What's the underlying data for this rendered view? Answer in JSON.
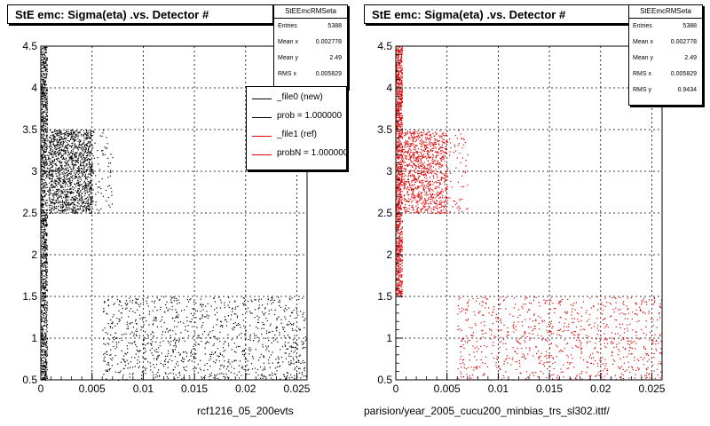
{
  "colors": {
    "new": "#000000",
    "ref": "#e00000"
  },
  "chart_data": [
    {
      "type": "scatter",
      "title": "StE emc: Sigma(eta) .vs. Detector #",
      "xlabel": "rcf1216_05_200evts",
      "xlim": [
        0,
        0.026
      ],
      "ylim": [
        0.5,
        4.5
      ],
      "xticks": [
        0,
        0.005,
        0.01,
        0.015,
        0.02,
        0.025
      ],
      "xtick_labels": [
        "0",
        "0.005",
        "0.01",
        "0.015",
        "0.02",
        "0.025"
      ],
      "yticks": [
        0.5,
        1,
        1.5,
        2,
        2.5,
        3,
        3.5,
        4,
        4.5
      ],
      "ytick_labels": [
        "0.5",
        "1",
        "1.5",
        "2",
        "2.5",
        "3",
        "3.5",
        "4",
        "4.5"
      ],
      "grid": true,
      "marker_color": "#000000",
      "stats": {
        "name": "StEEmcRMSeta",
        "rows": [
          {
            "label": "Entries",
            "value": "5388"
          },
          {
            "label": "Mean x",
            "value": "0.002778"
          },
          {
            "label": "Mean y",
            "value": "2.49"
          },
          {
            "label": "RMS x",
            "value": "0.005829"
          }
        ]
      },
      "legend": {
        "placement": "top-right",
        "entries": [
          {
            "label": "_file0 (new)",
            "color": "#000000"
          },
          {
            "label": "prob = 1.000000",
            "color": "#000000"
          },
          {
            "label": "_file1 (ref)",
            "color": "#e00000"
          },
          {
            "label": "probN = 1.000000",
            "color": "#e00000"
          }
        ]
      },
      "point_regions": [
        {
          "x": [
            0.0,
            0.0006
          ],
          "y": [
            0.5,
            4.5
          ],
          "count": 1100,
          "density": "very high"
        },
        {
          "x": [
            0.0007,
            0.005
          ],
          "y": [
            2.5,
            3.5
          ],
          "count": 1400,
          "density": "high"
        },
        {
          "x": [
            0.005,
            0.007
          ],
          "y": [
            2.5,
            3.5
          ],
          "count": 70,
          "density": "low"
        },
        {
          "x": [
            0.006,
            0.026
          ],
          "y": [
            0.5,
            1.5
          ],
          "count": 1100,
          "density": "low"
        }
      ]
    },
    {
      "type": "scatter",
      "title": "StE emc: Sigma(eta) .vs. Detector #",
      "xlabel": "parision/year_2005_cucu200_minbias_trs_sl302.ittf/",
      "xlim": [
        0,
        0.026
      ],
      "ylim": [
        0.5,
        4.5
      ],
      "xticks": [
        0,
        0.005,
        0.01,
        0.015,
        0.02,
        0.025
      ],
      "xtick_labels": [
        "0",
        "0.005",
        "0.01",
        "0.015",
        "0.02",
        "0.025"
      ],
      "yticks": [
        0.5,
        1,
        1.5,
        2,
        2.5,
        3,
        3.5,
        4,
        4.5
      ],
      "ytick_labels": [
        "0.5",
        "1",
        "1.5",
        "2",
        "2.5",
        "3",
        "3.5",
        "4",
        "4.5"
      ],
      "grid": true,
      "marker_color": "#e00000",
      "stats": {
        "name": "StEEmcRMSeta",
        "rows": [
          {
            "label": "Entries",
            "value": "5388"
          },
          {
            "label": "Mean x",
            "value": "0.002778"
          },
          {
            "label": "Mean y",
            "value": "2.49"
          },
          {
            "label": "RMS x",
            "value": "0.005829"
          },
          {
            "label": "RMS y",
            "value": "0.9434"
          }
        ]
      },
      "point_regions": [
        {
          "x": [
            0.0,
            0.0006
          ],
          "y": [
            1.5,
            4.5
          ],
          "count": 1100,
          "density": "very high"
        },
        {
          "x": [
            0.0007,
            0.005
          ],
          "y": [
            2.5,
            3.5
          ],
          "count": 1000,
          "density": "high"
        },
        {
          "x": [
            0.005,
            0.007
          ],
          "y": [
            2.5,
            3.5
          ],
          "count": 60,
          "density": "low"
        },
        {
          "x": [
            0.006,
            0.026
          ],
          "y": [
            0.5,
            1.5
          ],
          "count": 900,
          "density": "low"
        }
      ]
    }
  ]
}
